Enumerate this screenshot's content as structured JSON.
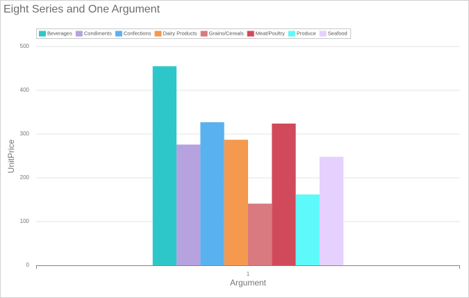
{
  "chart_data": {
    "type": "bar",
    "title": "Eight Series and One Argument",
    "x_label": "Argument",
    "y_label": "UnitPrice",
    "categories": [
      "1"
    ],
    "series": [
      {
        "name": "Beverages",
        "color": "#2ec7c9",
        "values": [
          455
        ]
      },
      {
        "name": "Condiments",
        "color": "#b6a2de",
        "values": [
          276
        ]
      },
      {
        "name": "Confections",
        "color": "#5ab1ef",
        "values": [
          327
        ]
      },
      {
        "name": "Dairy Products",
        "color": "#f5994e",
        "values": [
          287
        ]
      },
      {
        "name": "Grains/Cereals",
        "color": "#d87a80",
        "values": [
          141
        ]
      },
      {
        "name": "Meat/Poultry",
        "color": "#d14a5b",
        "values": [
          324
        ]
      },
      {
        "name": "Produce",
        "color": "#5ef9fa",
        "values": [
          162
        ]
      },
      {
        "name": "Seafood",
        "color": "#e5d0fe",
        "values": [
          248
        ]
      }
    ],
    "ylim": [
      0,
      500
    ],
    "yticks": [
      0,
      100,
      200,
      300,
      400,
      500
    ],
    "grid": true,
    "legend": "top"
  }
}
